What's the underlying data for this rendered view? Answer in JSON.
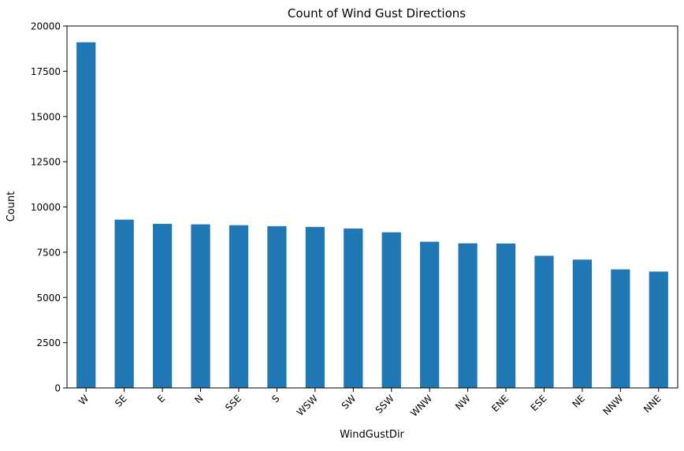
{
  "chart_data": {
    "type": "bar",
    "title": "Count of Wind Gust Directions",
    "xlabel": "WindGustDir",
    "ylabel": "Count",
    "categories": [
      "W",
      "SE",
      "E",
      "N",
      "SSE",
      "S",
      "WSW",
      "SW",
      "SSW",
      "WNW",
      "NW",
      "ENE",
      "ESE",
      "NE",
      "NNW",
      "NNE"
    ],
    "values": [
      19100,
      9300,
      9070,
      9040,
      8990,
      8940,
      8900,
      8810,
      8600,
      8080,
      7990,
      7980,
      7300,
      7090,
      6550,
      6430
    ],
    "ylim": [
      0,
      20000
    ],
    "yticks": [
      0,
      2500,
      5000,
      7500,
      10000,
      12500,
      15000,
      17500,
      20000
    ],
    "bar_color": "#1f77b4",
    "grid": false,
    "legend": "none"
  }
}
